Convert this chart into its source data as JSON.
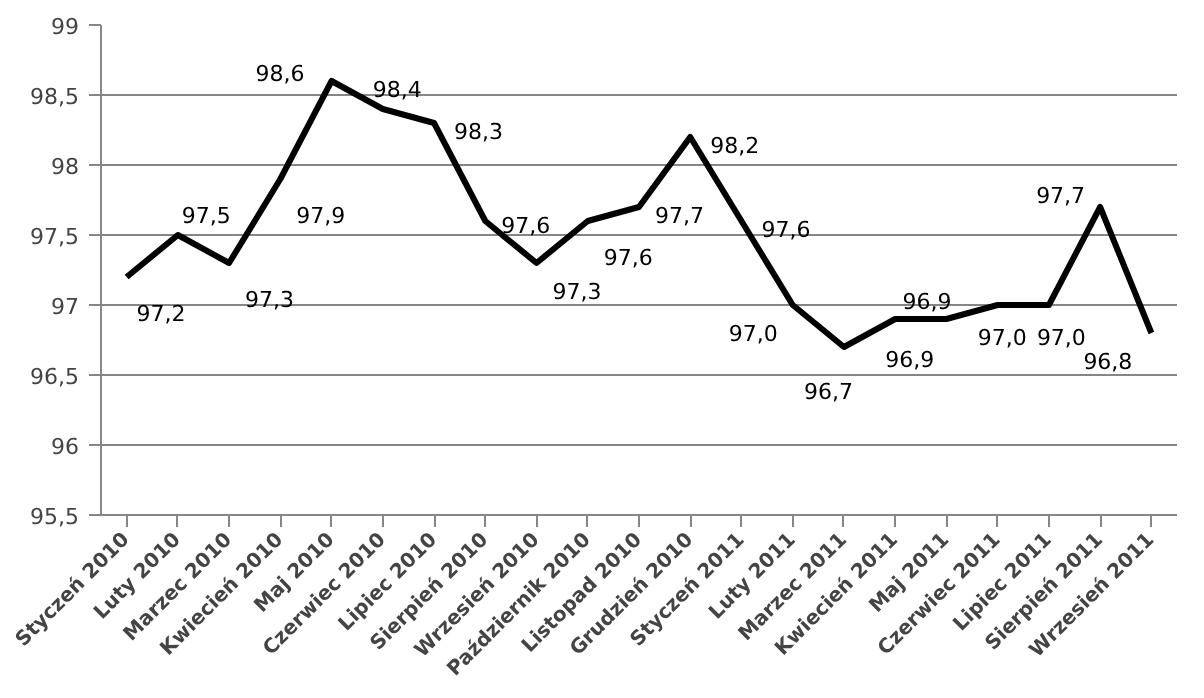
{
  "chart_data": {
    "type": "line",
    "categories": [
      "Styczeń 2010",
      "Luty 2010",
      "Marzec 2010",
      "Kwiecień 2010",
      "Maj 2010",
      "Czerwiec 2010",
      "Lipiec 2010",
      "Sierpień 2010",
      "Wrzesień 2010",
      "Październik 2010",
      "Listopad 2010",
      "Grudzień 2010",
      "Styczeń 2011",
      "Luty 2011",
      "Marzec 2011",
      "Kwiecień 2011",
      "Maj 2011",
      "Czerwiec 2011",
      "Lipiec 2011",
      "Sierpień 2011",
      "Wrzesień 2011"
    ],
    "series": [
      {
        "color": "#000000",
        "values": [
          97.2,
          97.5,
          97.3,
          97.9,
          98.6,
          98.4,
          98.3,
          97.6,
          97.3,
          97.6,
          97.7,
          98.2,
          97.6,
          97.0,
          96.7,
          96.9,
          96.9,
          97.0,
          97.0,
          97.7,
          96.8
        ],
        "value_labels": [
          "97,2",
          "97,5",
          "97,3",
          "97,9",
          "98,6",
          "98,4",
          "98,3",
          "97,6",
          "97,3",
          "97,6",
          "97,7",
          "98,2",
          "97,6",
          "97,0",
          "96,7",
          "96,9",
          "96,9",
          "97,0",
          "97,0",
          "97,7",
          "96,8"
        ]
      }
    ],
    "ylim": [
      95.5,
      99
    ],
    "yticks": [
      {
        "value": 95.5,
        "label": "95,5"
      },
      {
        "value": 96,
        "label": "96"
      },
      {
        "value": 96.5,
        "label": "96,5"
      },
      {
        "value": 97,
        "label": "97"
      },
      {
        "value": 97.5,
        "label": "97,5"
      },
      {
        "value": 98,
        "label": "98"
      },
      {
        "value": 98.5,
        "label": "98,5"
      },
      {
        "value": 99,
        "label": "99"
      }
    ],
    "grid": "y",
    "marker": "none",
    "line_style": "solid"
  }
}
